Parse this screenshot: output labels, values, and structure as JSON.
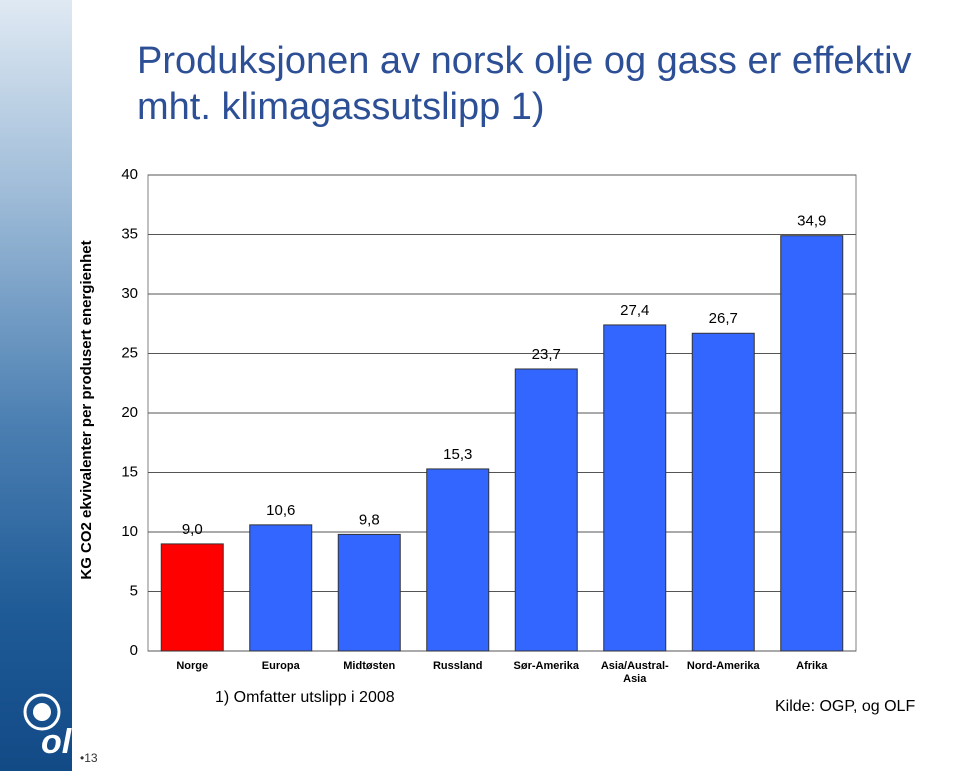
{
  "chart_data": {
    "type": "bar",
    "title": "Produksjonen av norsk olje og gass er effektiv mht. klimagassutslipp 1)",
    "y_label": "KG CO2 ekvivalenter per produsert energienhet",
    "categories": [
      "Norge",
      "Europa",
      "Midtøsten",
      "Russland",
      "Sør-Amerika",
      "Asia/Austral-Asia",
      "Nord-Amerika",
      "Afrika"
    ],
    "values": [
      9.0,
      10.6,
      9.8,
      15.3,
      23.7,
      27.4,
      26.7,
      34.9
    ],
    "value_labels": [
      "9,0",
      "10,6",
      "9,8",
      "15,3",
      "23,7",
      "27,4",
      "26,7",
      "34,9"
    ],
    "colors": [
      "#ff0000",
      "#3366ff",
      "#3366ff",
      "#3366ff",
      "#3366ff",
      "#3366ff",
      "#3366ff",
      "#3366ff"
    ],
    "ylim": [
      0,
      40
    ],
    "yticks": [
      0,
      5,
      10,
      15,
      20,
      25,
      30,
      35,
      40
    ],
    "grid": true,
    "footnote": "1)  Omfatter utslipp i 2008",
    "source": "Kilde: OGP, og OLF",
    "page_number": "•13",
    "logo": "olf"
  }
}
